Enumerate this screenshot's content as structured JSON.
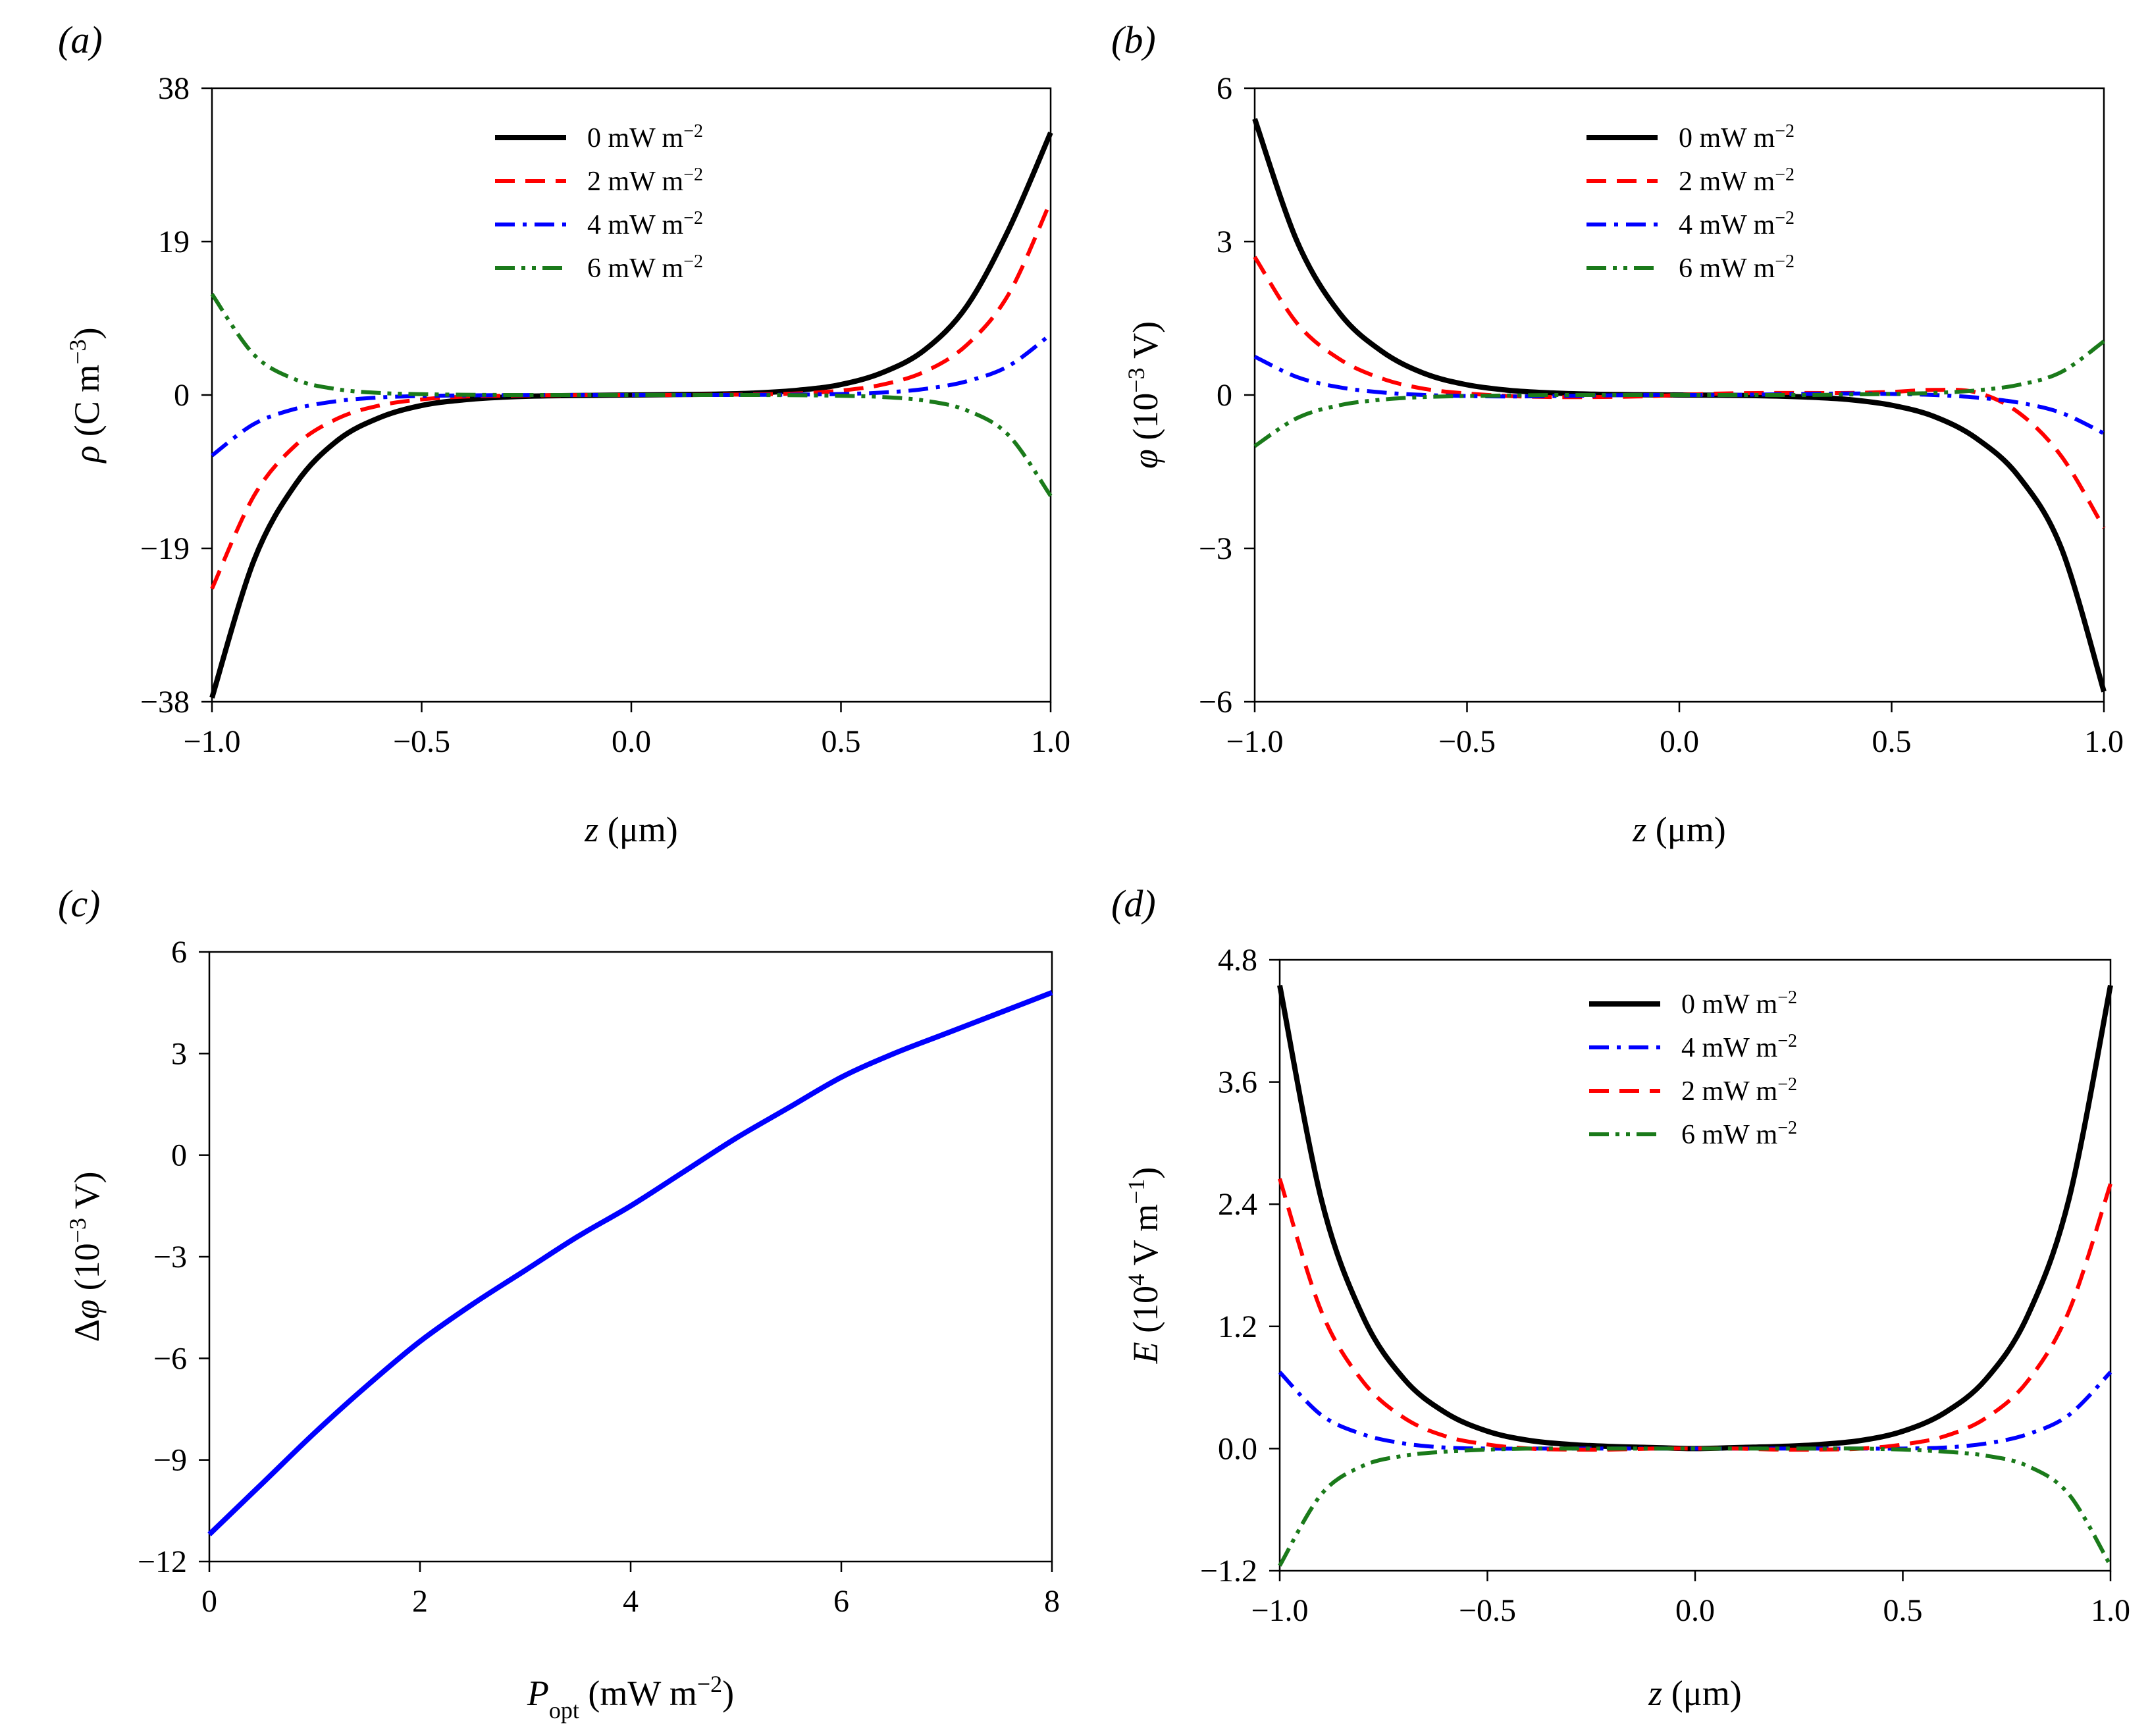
{
  "chart_data": [
    {
      "panel": "(a)",
      "type": "line",
      "xlabel": "z (μm)",
      "ylabel": "ρ (C m⁻³)",
      "xlim": [
        -1.0,
        1.0
      ],
      "ylim": [
        -38,
        38
      ],
      "xticks": [
        "−1.0",
        "−0.5",
        "0.0",
        "0.5",
        "1.0"
      ],
      "yticks": [
        "−38",
        "−19",
        "0",
        "19",
        "38"
      ],
      "legend_position": "top-center",
      "series": [
        {
          "name": "0 mW m⁻²",
          "color": "#000000",
          "dash": "solid",
          "x": [
            -1.0,
            -0.9,
            -0.8,
            -0.7,
            -0.6,
            -0.5,
            -0.4,
            -0.3,
            -0.2,
            -0.1,
            0.0,
            0.1,
            0.2,
            0.3,
            0.4,
            0.5,
            0.6,
            0.7,
            0.8,
            0.9,
            1.0
          ],
          "values": [
            -37.5,
            -20.5,
            -11.0,
            -5.6,
            -2.8,
            -1.3,
            -0.6,
            -0.25,
            -0.1,
            -0.05,
            0.0,
            0.05,
            0.1,
            0.25,
            0.6,
            1.3,
            2.8,
            5.6,
            11.0,
            20.5,
            32.5
          ]
        },
        {
          "name": "2 mW m⁻²",
          "color": "#ff0000",
          "dash": "dash",
          "x": [
            -1.0,
            -0.9,
            -0.8,
            -0.7,
            -0.6,
            -0.5,
            -0.4,
            -0.3,
            -0.2,
            -0.1,
            0.0,
            0.1,
            0.2,
            0.3,
            0.4,
            0.5,
            0.6,
            0.7,
            0.8,
            0.9,
            1.0
          ],
          "values": [
            -24.0,
            -12.5,
            -6.2,
            -2.9,
            -1.3,
            -0.55,
            -0.2,
            -0.08,
            -0.03,
            0.0,
            0.0,
            0.0,
            0.03,
            0.08,
            0.2,
            0.55,
            1.3,
            2.9,
            6.2,
            12.5,
            24.0
          ]
        },
        {
          "name": "4 mW m⁻²",
          "color": "#0000ff",
          "dash": "dashdot",
          "x": [
            -1.0,
            -0.9,
            -0.8,
            -0.7,
            -0.6,
            -0.5,
            -0.4,
            -0.3,
            -0.2,
            -0.1,
            0.0,
            0.1,
            0.2,
            0.3,
            0.4,
            0.5,
            0.6,
            0.7,
            0.8,
            0.9,
            1.0
          ],
          "values": [
            -7.5,
            -3.6,
            -1.7,
            -0.75,
            -0.3,
            -0.12,
            -0.05,
            -0.02,
            0.0,
            0.0,
            0.0,
            0.0,
            0.0,
            0.02,
            0.05,
            0.12,
            0.3,
            0.75,
            1.7,
            3.6,
            7.5
          ]
        },
        {
          "name": "6 mW m⁻²",
          "color": "#1a7a1a",
          "dash": "dashdotdot",
          "x": [
            -1.0,
            -0.9,
            -0.8,
            -0.7,
            -0.6,
            -0.5,
            -0.4,
            -0.3,
            -0.2,
            -0.1,
            0.0,
            0.1,
            0.2,
            0.3,
            0.4,
            0.5,
            0.6,
            0.7,
            0.8,
            0.9,
            1.0
          ],
          "values": [
            12.5,
            5.0,
            1.9,
            0.7,
            0.25,
            0.1,
            0.03,
            0.0,
            0.0,
            0.0,
            0.0,
            0.0,
            0.0,
            0.0,
            -0.03,
            -0.1,
            -0.25,
            -0.7,
            -1.9,
            -5.0,
            -12.5
          ]
        }
      ]
    },
    {
      "panel": "(b)",
      "type": "line",
      "xlabel": "z (μm)",
      "ylabel": "φ (10⁻³ V)",
      "xlim": [
        -1.0,
        1.0
      ],
      "ylim": [
        -6,
        6
      ],
      "xticks": [
        "−1.0",
        "−0.5",
        "0.0",
        "0.5",
        "1.0"
      ],
      "yticks": [
        "−6",
        "−3",
        "0",
        "3",
        "6"
      ],
      "legend_position": "top-center",
      "series": [
        {
          "name": "0 mW m⁻²",
          "color": "#000000",
          "dash": "solid",
          "x": [
            -1.0,
            -0.9,
            -0.8,
            -0.7,
            -0.6,
            -0.5,
            -0.4,
            -0.3,
            -0.2,
            -0.1,
            0.0,
            0.1,
            0.2,
            0.3,
            0.4,
            0.5,
            0.6,
            0.7,
            0.8,
            0.9,
            1.0
          ],
          "values": [
            5.4,
            3.0,
            1.6,
            0.85,
            0.42,
            0.2,
            0.09,
            0.04,
            0.015,
            0.005,
            0.0,
            -0.005,
            -0.015,
            -0.04,
            -0.09,
            -0.2,
            -0.42,
            -0.85,
            -1.6,
            -3.0,
            -5.8
          ]
        },
        {
          "name": "2 mW m⁻²",
          "color": "#ff0000",
          "dash": "dash",
          "x": [
            -1.0,
            -0.9,
            -0.8,
            -0.7,
            -0.6,
            -0.5,
            -0.4,
            -0.3,
            -0.2,
            -0.1,
            0.0,
            0.1,
            0.2,
            0.3,
            0.4,
            0.5,
            0.6,
            0.7,
            0.8,
            0.9,
            1.0
          ],
          "values": [
            2.7,
            1.4,
            0.7,
            0.32,
            0.12,
            0.03,
            -0.02,
            -0.04,
            -0.04,
            -0.03,
            0.0,
            0.03,
            0.04,
            0.04,
            0.04,
            0.06,
            0.1,
            0.05,
            -0.35,
            -1.2,
            -2.6
          ]
        },
        {
          "name": "4 mW m⁻²",
          "color": "#0000ff",
          "dash": "dashdot",
          "x": [
            -1.0,
            -0.9,
            -0.8,
            -0.7,
            -0.6,
            -0.5,
            -0.4,
            -0.3,
            -0.2,
            -0.1,
            0.0,
            0.1,
            0.2,
            0.3,
            0.4,
            0.5,
            0.6,
            0.7,
            0.8,
            0.9,
            1.0
          ],
          "values": [
            0.75,
            0.35,
            0.15,
            0.05,
            0.0,
            -0.02,
            -0.03,
            -0.02,
            -0.01,
            0.0,
            0.0,
            0.0,
            0.01,
            0.02,
            0.03,
            0.02,
            0.0,
            -0.05,
            -0.15,
            -0.35,
            -0.75
          ]
        },
        {
          "name": "6 mW m⁻²",
          "color": "#1a7a1a",
          "dash": "dashdotdot",
          "x": [
            -1.0,
            -0.9,
            -0.8,
            -0.7,
            -0.6,
            -0.5,
            -0.4,
            -0.3,
            -0.2,
            -0.1,
            0.0,
            0.1,
            0.2,
            0.3,
            0.4,
            0.5,
            0.6,
            0.7,
            0.8,
            0.9,
            1.0
          ],
          "values": [
            -1.0,
            -0.45,
            -0.2,
            -0.09,
            -0.04,
            -0.02,
            -0.01,
            0.0,
            0.0,
            0.0,
            0.0,
            0.0,
            0.0,
            0.0,
            0.01,
            0.02,
            0.04,
            0.09,
            0.2,
            0.45,
            1.05
          ]
        }
      ]
    },
    {
      "panel": "(c)",
      "type": "line",
      "xlabel": "P_opt (mW m⁻²)",
      "ylabel": "Δφ (10⁻³ V)",
      "xlim": [
        0,
        8
      ],
      "ylim": [
        -12,
        6
      ],
      "xticks": [
        "0",
        "2",
        "4",
        "6",
        "8"
      ],
      "yticks": [
        "−12",
        "−9",
        "−6",
        "−3",
        "0",
        "3",
        "6"
      ],
      "series": [
        {
          "name": "Δφ",
          "color": "#0000ff",
          "dash": "solid",
          "x": [
            0,
            0.5,
            1,
            1.5,
            2,
            2.5,
            3,
            3.5,
            4,
            4.5,
            5,
            5.5,
            6,
            6.5,
            7,
            7.5,
            8
          ],
          "values": [
            -11.2,
            -9.7,
            -8.2,
            -6.8,
            -5.5,
            -4.4,
            -3.4,
            -2.4,
            -1.5,
            -0.5,
            0.5,
            1.4,
            2.3,
            3.0,
            3.6,
            4.2,
            4.8
          ]
        }
      ]
    },
    {
      "panel": "(d)",
      "type": "line",
      "xlabel": "z (μm)",
      "ylabel": "E (10⁴ V m⁻¹)",
      "xlim": [
        -1.0,
        1.0
      ],
      "ylim": [
        -1.2,
        4.8
      ],
      "xticks": [
        "−1.0",
        "−0.5",
        "0.0",
        "0.5",
        "1.0"
      ],
      "yticks": [
        "−1.2",
        "0.0",
        "1.2",
        "2.4",
        "3.6",
        "4.8"
      ],
      "legend_position": "top-center",
      "series": [
        {
          "name": "0 mW m⁻²",
          "color": "#000000",
          "dash": "solid",
          "x": [
            -1.0,
            -0.9,
            -0.8,
            -0.7,
            -0.6,
            -0.5,
            -0.4,
            -0.3,
            -0.2,
            -0.1,
            0.0,
            0.1,
            0.2,
            0.3,
            0.4,
            0.5,
            0.6,
            0.7,
            0.8,
            0.9,
            1.0
          ],
          "values": [
            4.55,
            2.45,
            1.3,
            0.68,
            0.35,
            0.17,
            0.08,
            0.04,
            0.02,
            0.01,
            0.0,
            0.01,
            0.02,
            0.04,
            0.08,
            0.17,
            0.35,
            0.68,
            1.3,
            2.45,
            4.55
          ]
        },
        {
          "name": "4 mW m⁻²",
          "color": "#0000ff",
          "dash": "dashdot",
          "x": [
            -1.0,
            -0.9,
            -0.8,
            -0.7,
            -0.6,
            -0.5,
            -0.4,
            -0.3,
            -0.2,
            -0.1,
            0.0,
            0.1,
            0.2,
            0.3,
            0.4,
            0.5,
            0.6,
            0.7,
            0.8,
            0.9,
            1.0
          ],
          "values": [
            0.75,
            0.33,
            0.14,
            0.05,
            0.01,
            0.0,
            0.0,
            0.0,
            0.0,
            0.0,
            0.0,
            0.0,
            0.0,
            0.0,
            0.0,
            0.0,
            0.01,
            0.05,
            0.14,
            0.33,
            0.75
          ]
        },
        {
          "name": "2 mW m⁻²",
          "color": "#ff0000",
          "dash": "dash",
          "x": [
            -1.0,
            -0.9,
            -0.8,
            -0.7,
            -0.6,
            -0.5,
            -0.4,
            -0.3,
            -0.2,
            -0.1,
            0.0,
            0.1,
            0.2,
            0.3,
            0.4,
            0.5,
            0.6,
            0.7,
            0.8,
            0.9,
            1.0
          ],
          "values": [
            2.65,
            1.35,
            0.66,
            0.3,
            0.12,
            0.04,
            0.0,
            -0.01,
            -0.01,
            0.0,
            0.0,
            0.0,
            -0.01,
            -0.01,
            0.0,
            0.04,
            0.12,
            0.3,
            0.66,
            1.35,
            2.6
          ]
        },
        {
          "name": "6 mW m⁻²",
          "color": "#1a7a1a",
          "dash": "dashdotdot",
          "x": [
            -1.0,
            -0.9,
            -0.8,
            -0.7,
            -0.6,
            -0.5,
            -0.4,
            -0.3,
            -0.2,
            -0.1,
            0.0,
            0.1,
            0.2,
            0.3,
            0.4,
            0.5,
            0.6,
            0.7,
            0.8,
            0.9,
            1.0
          ],
          "values": [
            -1.15,
            -0.45,
            -0.17,
            -0.07,
            -0.03,
            -0.01,
            0.0,
            0.0,
            0.0,
            0.0,
            0.0,
            0.0,
            0.0,
            0.0,
            0.0,
            -0.01,
            -0.03,
            -0.07,
            -0.17,
            -0.45,
            -1.15
          ]
        }
      ]
    }
  ]
}
